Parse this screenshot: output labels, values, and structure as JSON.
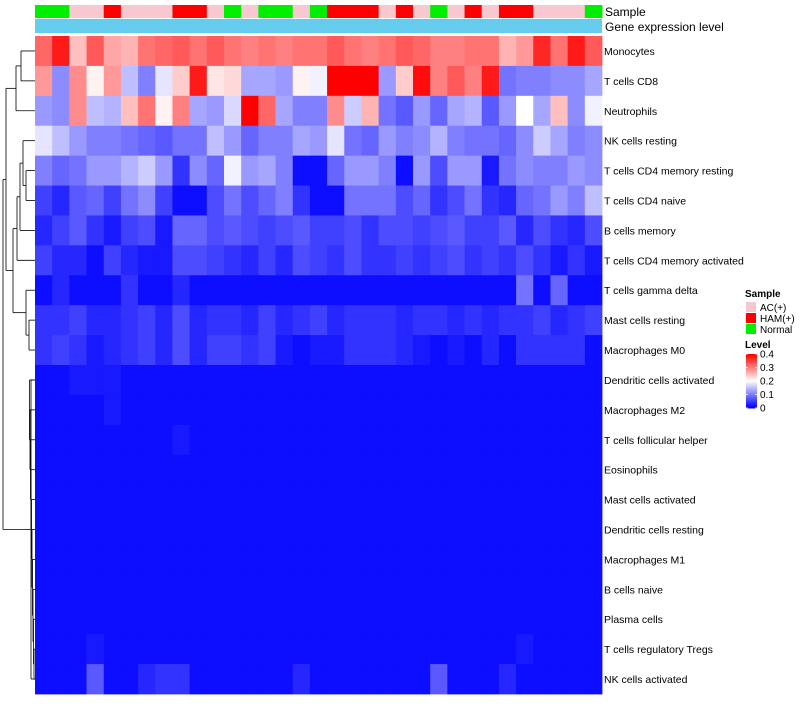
{
  "chart_data": {
    "type": "heatmap",
    "title": "",
    "annotation_labels": {
      "sample": "Sample",
      "expr": "Gene expression level"
    },
    "rows": [
      "Monocytes",
      "T cells CD8",
      "Neutrophils",
      "NK cells resting",
      "T cells CD4 memory resting",
      "T cells CD4 naive",
      "B cells memory",
      "T cells CD4 memory activated",
      "T cells gamma delta",
      "Mast cells resting",
      "Macrophages M0",
      "Dendritic cells activated",
      "Macrophages M2",
      "T cells follicular helper",
      "Eosinophils",
      "Mast cells activated",
      "Dendritic cells resting",
      "Macrophages M1",
      "B cells naive",
      "Plasma cells",
      "T cells regulatory  Tregs",
      "NK cells activated"
    ],
    "sample_groups": [
      "Normal",
      "Normal",
      "AC(+)",
      "AC(+)",
      "HAM(+)",
      "AC(+)",
      "AC(+)",
      "AC(+)",
      "HAM(+)",
      "HAM(+)",
      "AC(+)",
      "Normal",
      "AC(+)",
      "Normal",
      "Normal",
      "AC(+)",
      "Normal",
      "HAM(+)",
      "HAM(+)",
      "HAM(+)",
      "AC(+)",
      "HAM(+)",
      "AC(+)",
      "Normal",
      "AC(+)",
      "HAM(+)",
      "AC(+)",
      "HAM(+)",
      "HAM(+)",
      "AC(+)",
      "AC(+)",
      "AC(+)",
      "Normal"
    ],
    "values": [
      [
        0.32,
        0.38,
        0.25,
        0.33,
        0.27,
        0.26,
        0.31,
        0.32,
        0.33,
        0.31,
        0.33,
        0.31,
        0.3,
        0.31,
        0.3,
        0.31,
        0.31,
        0.33,
        0.31,
        0.3,
        0.31,
        0.33,
        0.32,
        0.3,
        0.3,
        0.31,
        0.31,
        0.26,
        0.28,
        0.37,
        0.31,
        0.38,
        0.33
      ],
      [
        0.28,
        0.11,
        0.29,
        0.21,
        0.28,
        0.15,
        0.1,
        0.18,
        0.24,
        0.38,
        0.22,
        0.23,
        0.13,
        0.13,
        0.12,
        0.21,
        0.19,
        0.4,
        0.4,
        0.4,
        0.12,
        0.24,
        0.39,
        0.3,
        0.33,
        0.3,
        0.38,
        0.09,
        0.1,
        0.1,
        0.11,
        0.11,
        0.13
      ],
      [
        0.12,
        0.11,
        0.29,
        0.15,
        0.14,
        0.25,
        0.31,
        0.21,
        0.3,
        0.13,
        0.12,
        0.17,
        0.4,
        0.32,
        0.13,
        0.1,
        0.1,
        0.29,
        0.16,
        0.26,
        0.09,
        0.07,
        0.12,
        0.08,
        0.13,
        0.14,
        0.07,
        0.12,
        0.2,
        0.13,
        0.25,
        0.11,
        0.19
      ],
      [
        0.18,
        0.15,
        0.12,
        0.1,
        0.1,
        0.09,
        0.08,
        0.07,
        0.09,
        0.09,
        0.15,
        0.12,
        0.08,
        0.1,
        0.1,
        0.13,
        0.12,
        0.18,
        0.09,
        0.08,
        0.12,
        0.1,
        0.11,
        0.14,
        0.1,
        0.09,
        0.09,
        0.08,
        0.11,
        0.16,
        0.13,
        0.1,
        0.11
      ],
      [
        0.1,
        0.08,
        0.09,
        0.12,
        0.12,
        0.14,
        0.16,
        0.12,
        0.04,
        0.11,
        0.08,
        0.19,
        0.12,
        0.13,
        0.1,
        0.01,
        0.01,
        0.08,
        0.12,
        0.12,
        0.1,
        0.01,
        0.12,
        0.06,
        0.12,
        0.12,
        0.02,
        0.09,
        0.11,
        0.1,
        0.1,
        0.12,
        0.11
      ],
      [
        0.05,
        0.03,
        0.07,
        0.08,
        0.05,
        0.09,
        0.11,
        0.05,
        0.01,
        0.01,
        0.06,
        0.09,
        0.06,
        0.08,
        0.1,
        0.04,
        0.01,
        0.01,
        0.09,
        0.09,
        0.09,
        0.06,
        0.08,
        0.04,
        0.06,
        0.09,
        0.04,
        0.03,
        0.08,
        0.09,
        0.12,
        0.1,
        0.15
      ],
      [
        0.03,
        0.05,
        0.07,
        0.04,
        0.02,
        0.05,
        0.06,
        0.02,
        0.08,
        0.08,
        0.06,
        0.07,
        0.06,
        0.05,
        0.06,
        0.07,
        0.05,
        0.05,
        0.06,
        0.04,
        0.06,
        0.06,
        0.05,
        0.06,
        0.07,
        0.05,
        0.05,
        0.07,
        0.03,
        0.06,
        0.04,
        0.03,
        0.06
      ],
      [
        0.05,
        0.03,
        0.03,
        0.01,
        0.05,
        0.03,
        0.02,
        0.02,
        0.06,
        0.06,
        0.05,
        0.04,
        0.03,
        0.05,
        0.03,
        0.06,
        0.05,
        0.04,
        0.06,
        0.04,
        0.04,
        0.05,
        0.04,
        0.05,
        0.06,
        0.04,
        0.05,
        0.04,
        0.06,
        0.04,
        0.02,
        0.04,
        0.02
      ],
      [
        0.01,
        0.03,
        0.01,
        0.01,
        0.01,
        0.04,
        0.01,
        0.01,
        0.03,
        0.01,
        0.01,
        0.01,
        0.01,
        0.01,
        0.01,
        0.01,
        0.01,
        0.01,
        0.01,
        0.01,
        0.01,
        0.01,
        0.01,
        0.01,
        0.01,
        0.01,
        0.01,
        0.01,
        0.09,
        0.01,
        0.08,
        0.01,
        0.01
      ],
      [
        0.04,
        0.04,
        0.05,
        0.03,
        0.03,
        0.04,
        0.05,
        0.03,
        0.06,
        0.03,
        0.04,
        0.04,
        0.03,
        0.05,
        0.03,
        0.04,
        0.05,
        0.03,
        0.04,
        0.04,
        0.04,
        0.03,
        0.04,
        0.04,
        0.03,
        0.04,
        0.03,
        0.04,
        0.04,
        0.05,
        0.03,
        0.04,
        0.05
      ],
      [
        0.04,
        0.05,
        0.04,
        0.02,
        0.03,
        0.04,
        0.05,
        0.03,
        0.06,
        0.03,
        0.05,
        0.05,
        0.04,
        0.05,
        0.02,
        0.01,
        0.02,
        0.02,
        0.04,
        0.04,
        0.04,
        0.03,
        0.02,
        0.01,
        0.02,
        0.01,
        0.03,
        0.01,
        0.04,
        0.04,
        0.04,
        0.04,
        0.01
      ],
      [
        0.01,
        0.01,
        0.02,
        0.02,
        0.02,
        0.01,
        0.01,
        0.01,
        0.01,
        0.01,
        0.01,
        0.01,
        0.01,
        0.01,
        0.01,
        0.01,
        0.01,
        0.01,
        0.01,
        0.01,
        0.01,
        0.01,
        0.01,
        0.01,
        0.01,
        0.01,
        0.01,
        0.01,
        0.01,
        0.01,
        0.01,
        0.01,
        0.01
      ],
      [
        0.01,
        0.01,
        0.01,
        0.01,
        0.02,
        0.01,
        0.01,
        0.01,
        0.01,
        0.01,
        0.01,
        0.01,
        0.01,
        0.01,
        0.01,
        0.01,
        0.01,
        0.01,
        0.01,
        0.01,
        0.01,
        0.01,
        0.01,
        0.01,
        0.01,
        0.01,
        0.01,
        0.01,
        0.01,
        0.01,
        0.01,
        0.01,
        0.01
      ],
      [
        0.01,
        0.01,
        0.01,
        0.01,
        0.01,
        0.01,
        0.01,
        0.01,
        0.02,
        0.01,
        0.01,
        0.01,
        0.01,
        0.01,
        0.01,
        0.01,
        0.01,
        0.01,
        0.01,
        0.01,
        0.01,
        0.01,
        0.01,
        0.01,
        0.01,
        0.01,
        0.01,
        0.01,
        0.01,
        0.01,
        0.01,
        0.01,
        0.01
      ],
      [
        0.01,
        0.01,
        0.01,
        0.01,
        0.01,
        0.01,
        0.01,
        0.01,
        0.01,
        0.01,
        0.01,
        0.01,
        0.01,
        0.01,
        0.01,
        0.01,
        0.01,
        0.01,
        0.01,
        0.01,
        0.01,
        0.01,
        0.01,
        0.01,
        0.01,
        0.01,
        0.01,
        0.01,
        0.01,
        0.01,
        0.01,
        0.01,
        0.01
      ],
      [
        0.01,
        0.01,
        0.01,
        0.01,
        0.01,
        0.01,
        0.01,
        0.01,
        0.01,
        0.01,
        0.01,
        0.01,
        0.01,
        0.01,
        0.01,
        0.01,
        0.01,
        0.01,
        0.01,
        0.01,
        0.01,
        0.01,
        0.01,
        0.01,
        0.01,
        0.01,
        0.01,
        0.01,
        0.01,
        0.01,
        0.01,
        0.01,
        0.01
      ],
      [
        0.01,
        0.01,
        0.01,
        0.01,
        0.01,
        0.01,
        0.01,
        0.01,
        0.01,
        0.01,
        0.01,
        0.01,
        0.01,
        0.01,
        0.01,
        0.01,
        0.01,
        0.01,
        0.01,
        0.01,
        0.01,
        0.01,
        0.01,
        0.01,
        0.01,
        0.01,
        0.01,
        0.01,
        0.01,
        0.01,
        0.01,
        0.01,
        0.01
      ],
      [
        0.01,
        0.01,
        0.01,
        0.01,
        0.01,
        0.01,
        0.01,
        0.01,
        0.01,
        0.01,
        0.01,
        0.01,
        0.01,
        0.01,
        0.01,
        0.01,
        0.01,
        0.01,
        0.01,
        0.01,
        0.01,
        0.01,
        0.01,
        0.01,
        0.01,
        0.01,
        0.01,
        0.01,
        0.01,
        0.01,
        0.01,
        0.01,
        0.01
      ],
      [
        0.01,
        0.01,
        0.01,
        0.01,
        0.01,
        0.01,
        0.01,
        0.01,
        0.01,
        0.01,
        0.01,
        0.01,
        0.01,
        0.01,
        0.01,
        0.01,
        0.01,
        0.01,
        0.01,
        0.01,
        0.01,
        0.01,
        0.01,
        0.01,
        0.01,
        0.01,
        0.01,
        0.01,
        0.01,
        0.01,
        0.01,
        0.01,
        0.01
      ],
      [
        0.01,
        0.01,
        0.01,
        0.01,
        0.01,
        0.01,
        0.01,
        0.01,
        0.01,
        0.01,
        0.01,
        0.01,
        0.01,
        0.01,
        0.01,
        0.01,
        0.01,
        0.01,
        0.01,
        0.01,
        0.01,
        0.01,
        0.01,
        0.01,
        0.01,
        0.01,
        0.01,
        0.01,
        0.01,
        0.01,
        0.01,
        0.01,
        0.01
      ],
      [
        0.01,
        0.01,
        0.01,
        0.02,
        0.01,
        0.01,
        0.01,
        0.01,
        0.01,
        0.01,
        0.01,
        0.01,
        0.01,
        0.01,
        0.01,
        0.01,
        0.01,
        0.01,
        0.01,
        0.01,
        0.01,
        0.01,
        0.01,
        0.01,
        0.01,
        0.01,
        0.01,
        0.01,
        0.02,
        0.01,
        0.01,
        0.01,
        0.01
      ],
      [
        0.01,
        0.01,
        0.01,
        0.07,
        0.01,
        0.01,
        0.03,
        0.04,
        0.04,
        0.01,
        0.01,
        0.01,
        0.01,
        0.01,
        0.01,
        0.03,
        0.01,
        0.01,
        0.01,
        0.01,
        0.01,
        0.01,
        0.01,
        0.07,
        0.01,
        0.01,
        0.01,
        0.03,
        0.01,
        0.01,
        0.01,
        0.01,
        0.01
      ]
    ],
    "legend": {
      "sample_title": "Sample",
      "sample_items": [
        {
          "label": "AC(+)",
          "color": "#f8c8d0"
        },
        {
          "label": "HAM(+)",
          "color": "#ff0000"
        },
        {
          "label": "Normal",
          "color": "#00ee00"
        }
      ],
      "level_title": "Level",
      "level_ticks": [
        "0.4",
        "0.3",
        "0.2",
        "0.1",
        "0"
      ],
      "level_range": [
        0,
        0.4
      ]
    },
    "colors": {
      "low": "#0000ff",
      "mid": "#ffffff",
      "high": "#ff0000",
      "expr_bar": "#66ccee"
    }
  }
}
